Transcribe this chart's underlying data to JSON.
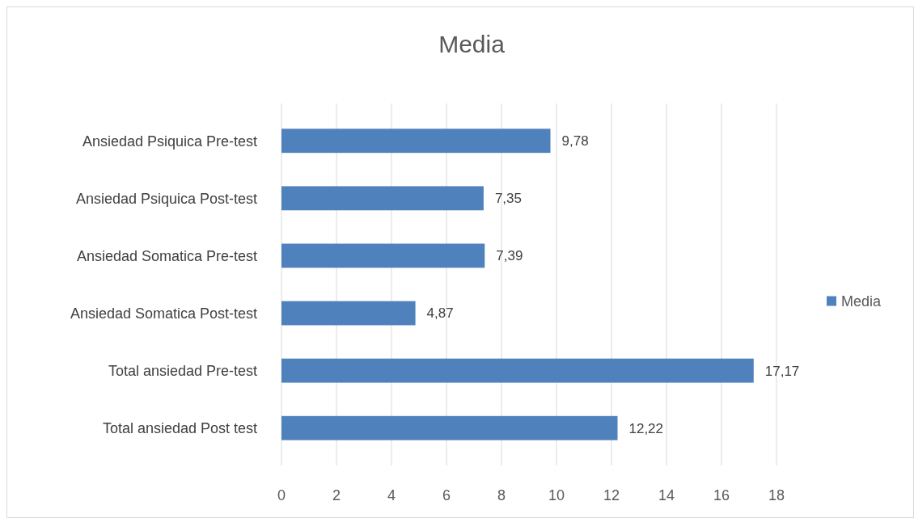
{
  "chart_data": {
    "type": "bar",
    "orientation": "horizontal",
    "title": "Media",
    "categories": [
      "Ansiedad Psiquica Pre-test",
      "Ansiedad Psiquica Post-test",
      "Ansiedad Somatica Pre-test",
      "Ansiedad Somatica Post-test",
      "Total ansiedad Pre-test",
      "Total ansiedad Post test"
    ],
    "series": [
      {
        "name": "Media",
        "color": "#4f81bd",
        "values": [
          9.78,
          7.35,
          7.39,
          4.87,
          17.17,
          12.22
        ],
        "value_labels": [
          "9,78",
          "7,35",
          "7,39",
          "4,87",
          "17,17",
          "12,22"
        ]
      }
    ],
    "xlim": [
      0,
      18
    ],
    "xticks": [
      0,
      2,
      4,
      6,
      8,
      10,
      12,
      14,
      16,
      18
    ],
    "grid": "x",
    "legend": "right"
  }
}
